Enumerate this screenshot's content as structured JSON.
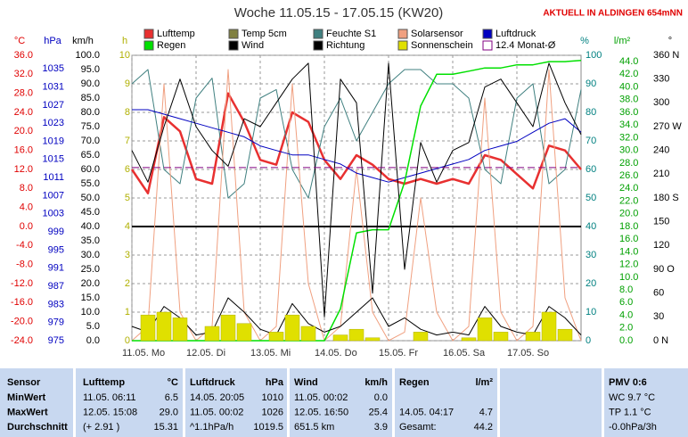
{
  "chart_data": {
    "type": "line",
    "title": "Woche 11.05.15 - 17.05.15 (KW20)",
    "x": [
      0,
      6,
      12,
      18,
      24,
      30,
      36,
      42,
      48,
      54,
      60,
      66,
      72,
      78,
      84,
      90,
      96,
      102,
      108,
      114,
      120,
      126,
      132,
      138,
      144,
      150,
      156,
      162,
      168
    ],
    "xlim": [
      0,
      168
    ],
    "xticks": [
      {
        "value": 0,
        "label": "11.05. Mo"
      },
      {
        "value": 24,
        "label": "12.05. Di"
      },
      {
        "value": 48,
        "label": "13.05. Mi"
      },
      {
        "value": 72,
        "label": "14.05. Do"
      },
      {
        "value": 96,
        "label": "15.05. Fr"
      },
      {
        "value": 120,
        "label": "16.05. Sa"
      },
      {
        "value": 144,
        "label": "17.05. So"
      }
    ],
    "grid": true,
    "axes": {
      "temp": {
        "label": "°C",
        "color": "#e00000",
        "lim": [
          -24,
          36
        ],
        "ticks": [
          {
            "value": 36,
            "label": "36.0"
          },
          {
            "value": 32,
            "label": "32.0"
          },
          {
            "value": 28,
            "label": "28.0"
          },
          {
            "value": 24,
            "label": "24.0"
          },
          {
            "value": 20,
            "label": "20.0"
          },
          {
            "value": 16,
            "label": "16.0"
          },
          {
            "value": 12,
            "label": "12.0"
          },
          {
            "value": 8,
            "label": "8.0"
          },
          {
            "value": 4,
            "label": "4.0"
          },
          {
            "value": 0,
            "label": "0.0"
          },
          {
            "value": -4,
            "label": "-4.0"
          },
          {
            "value": -8,
            "label": "-8.0"
          },
          {
            "value": -12,
            "label": "-12.0"
          },
          {
            "value": -16,
            "label": "-16.0"
          },
          {
            "value": -20,
            "label": "-20.0"
          },
          {
            "value": -24,
            "label": "-24.0"
          }
        ]
      },
      "pressure": {
        "label": "hPa",
        "color": "#0000c0",
        "lim": [
          975,
          1038
        ],
        "ticks": [
          1035,
          1031,
          1027,
          1023,
          1019,
          1015,
          1011,
          1007,
          1003,
          999,
          995,
          991,
          987,
          983,
          979,
          975
        ]
      },
      "wind": {
        "label": "km/h",
        "color": "#000000",
        "lim": [
          0,
          100
        ],
        "ticks": [
          {
            "value": 100,
            "label": "100.0"
          },
          {
            "value": 95,
            "label": "95.0"
          },
          {
            "value": 90,
            "label": "90.0"
          },
          {
            "value": 85,
            "label": "85.0"
          },
          {
            "value": 80,
            "label": "80.0"
          },
          {
            "value": 75,
            "label": "75.0"
          },
          {
            "value": 70,
            "label": "70.0"
          },
          {
            "value": 65,
            "label": "65.0"
          },
          {
            "value": 60,
            "label": "60.0"
          },
          {
            "value": 55,
            "label": "55.0"
          },
          {
            "value": 50,
            "label": "50.0"
          },
          {
            "value": 45,
            "label": "45.0"
          },
          {
            "value": 40,
            "label": "40.0"
          },
          {
            "value": 35,
            "label": "35.0"
          },
          {
            "value": 30,
            "label": "30.0"
          },
          {
            "value": 25,
            "label": "25.0"
          },
          {
            "value": 20,
            "label": "20.0"
          },
          {
            "value": 15,
            "label": "15.0"
          },
          {
            "value": 10,
            "label": "10.0"
          },
          {
            "value": 5,
            "label": "5.0"
          },
          {
            "value": 0,
            "label": "0.0"
          }
        ]
      },
      "sun": {
        "label": "h",
        "color": "#b0b000",
        "lim": [
          0,
          10
        ],
        "ticks": [
          10,
          9,
          8,
          7,
          6,
          5,
          4,
          3,
          2,
          1,
          0
        ]
      },
      "humidity": {
        "label": "%",
        "color": "#008080",
        "lim": [
          0,
          100
        ],
        "ticks": [
          100,
          90,
          80,
          70,
          60,
          50,
          40,
          30,
          20,
          10,
          0
        ]
      },
      "rain": {
        "label": "l/m²",
        "color": "#00a000",
        "lim": [
          0,
          45
        ],
        "ticks": [
          {
            "value": 44,
            "label": "44.0"
          },
          {
            "value": 42,
            "label": "42.0"
          },
          {
            "value": 40,
            "label": "40.0"
          },
          {
            "value": 38,
            "label": "38.0"
          },
          {
            "value": 36,
            "label": "36.0"
          },
          {
            "value": 34,
            "label": "34.0"
          },
          {
            "value": 32,
            "label": "32.0"
          },
          {
            "value": 30,
            "label": "30.0"
          },
          {
            "value": 28,
            "label": "28.0"
          },
          {
            "value": 26,
            "label": "26.0"
          },
          {
            "value": 24,
            "label": "24.0"
          },
          {
            "value": 22,
            "label": "22.0"
          },
          {
            "value": 20,
            "label": "20.0"
          },
          {
            "value": 18,
            "label": "18.0"
          },
          {
            "value": 16,
            "label": "16.0"
          },
          {
            "value": 14,
            "label": "14.0"
          },
          {
            "value": 12,
            "label": "12.0"
          },
          {
            "value": 10,
            "label": "10.0"
          },
          {
            "value": 8,
            "label": "8.0"
          },
          {
            "value": 6,
            "label": "6.0"
          },
          {
            "value": 4,
            "label": "4.0"
          },
          {
            "value": 2,
            "label": "2.0"
          },
          {
            "value": 0,
            "label": "0.0"
          }
        ]
      },
      "direction": {
        "label": "°",
        "color": "#000000",
        "lim": [
          0,
          360
        ],
        "ticks": [
          {
            "value": 360,
            "label": "360 N"
          },
          330,
          300,
          {
            "value": 270,
            "label": "270 W"
          },
          240,
          210,
          {
            "value": 180,
            "label": "180 S"
          },
          150,
          120,
          {
            "value": 90,
            "label": "90 O"
          },
          60,
          30,
          {
            "value": 0,
            "label": "0 N"
          }
        ]
      }
    },
    "baseline": {
      "axis": "temp",
      "value": 0
    },
    "series": [
      {
        "name": "Lufttemp",
        "color": "#e83030",
        "axis": "temp",
        "width": 2.5,
        "values": [
          12,
          7,
          23,
          20,
          10,
          9,
          28,
          22,
          14,
          13,
          24,
          22,
          14,
          10,
          15,
          13,
          10,
          9,
          10,
          9,
          10,
          9,
          15,
          14,
          11,
          8,
          17,
          16,
          12
        ]
      },
      {
        "name": "Temp 5cm",
        "color": "#808040",
        "axis": "temp"
      },
      {
        "name": "Feuchte S1",
        "color": "#408080",
        "axis": "humidity",
        "width": 1,
        "values": [
          90,
          95,
          60,
          55,
          85,
          92,
          50,
          55,
          85,
          88,
          60,
          50,
          75,
          85,
          70,
          80,
          90,
          95,
          95,
          90,
          90,
          85,
          60,
          55,
          85,
          90,
          55,
          60,
          88
        ]
      },
      {
        "name": "Solarsensor",
        "color": "#f0a080",
        "axis": "humidity",
        "width": 1,
        "values": [
          0,
          5,
          90,
          10,
          0,
          5,
          95,
          10,
          0,
          5,
          90,
          20,
          0,
          5,
          60,
          10,
          0,
          3,
          50,
          10,
          0,
          5,
          85,
          10,
          0,
          5,
          95,
          15,
          0
        ]
      },
      {
        "name": "Luftdruck",
        "color": "#0000c0",
        "axis": "pressure",
        "width": 1,
        "values": [
          1026,
          1026,
          1025,
          1024,
          1023,
          1022,
          1021,
          1020,
          1018,
          1017,
          1016,
          1016,
          1015,
          1014,
          1012,
          1011,
          1010,
          1011,
          1012,
          1013,
          1014,
          1015,
          1017,
          1018,
          1019,
          1021,
          1023,
          1024,
          1021
        ]
      },
      {
        "name": "Regen",
        "color": "#00e000",
        "axis": "rain",
        "width": 1.5,
        "values": [
          0,
          0,
          0,
          0,
          0,
          0,
          0,
          0,
          0,
          0,
          0,
          0,
          0,
          5,
          17,
          17.5,
          17.5,
          25,
          37,
          42,
          42,
          42.5,
          43,
          43,
          43.5,
          43.5,
          44,
          44,
          44.2
        ]
      },
      {
        "name": "Wind",
        "color": "#000000",
        "axis": "wind",
        "width": 1,
        "values": [
          5,
          3,
          12,
          8,
          2,
          3,
          15,
          10,
          4,
          2,
          13,
          6,
          3,
          5,
          10,
          15,
          5,
          8,
          4,
          2,
          3,
          2,
          12,
          5,
          3,
          2,
          12,
          8,
          2
        ]
      },
      {
        "name": "Richtung",
        "color": "#000000",
        "axis": "direction",
        "width": 1,
        "values": [
          240,
          200,
          270,
          330,
          270,
          240,
          220,
          280,
          270,
          300,
          330,
          350,
          30,
          330,
          300,
          60,
          350,
          90,
          250,
          200,
          240,
          250,
          320,
          330,
          300,
          270,
          350,
          300,
          260
        ]
      },
      {
        "name": "Sonnenschein",
        "color": "#e0e000",
        "axis": "sun",
        "type": "bar",
        "values": [
          0,
          0.9,
          1.0,
          0.8,
          0,
          0.5,
          0.9,
          0.6,
          0,
          0.3,
          0.9,
          0.5,
          0,
          0.2,
          0.4,
          0.1,
          0,
          0,
          0.3,
          0,
          0,
          0.1,
          0.8,
          0.3,
          0,
          0.3,
          1.0,
          0.4,
          0
        ]
      },
      {
        "name": "12.4 Monat-Ø",
        "color": "#800080",
        "axis": "temp",
        "type": "reference",
        "value": 12.4
      }
    ]
  },
  "banner": "AKTUELL IN ALDINGEN 654mNN",
  "table": {
    "header": [
      "Sensor",
      "Lufttemp",
      "°C",
      "Luftdruck",
      "hPa",
      "Wind",
      "km/h",
      "Regen",
      "l/m²",
      "PMV 0:6"
    ],
    "rows": [
      [
        "MinWert",
        "11.05.  06:11",
        "6.5",
        "14.05.  20:05",
        "1010",
        "11.05.  00:02",
        "0.0",
        "WC 9.7 °C"
      ],
      [
        "MaxWert",
        "12.05.  15:08",
        "29.0",
        "11.05.  00:02",
        "1026",
        "12.05.  16:50",
        "25.4",
        "14.05.  04:17",
        "4.7",
        "TP 1.1 °C"
      ],
      [
        "Durchschnitt",
        "(+ 2.91 )",
        "15.31",
        "^1.1hPa/h",
        "1019.5",
        "651.5 km",
        "3.9",
        "Gesamt:",
        "44.2",
        "-0.0hPa/3h"
      ]
    ]
  }
}
